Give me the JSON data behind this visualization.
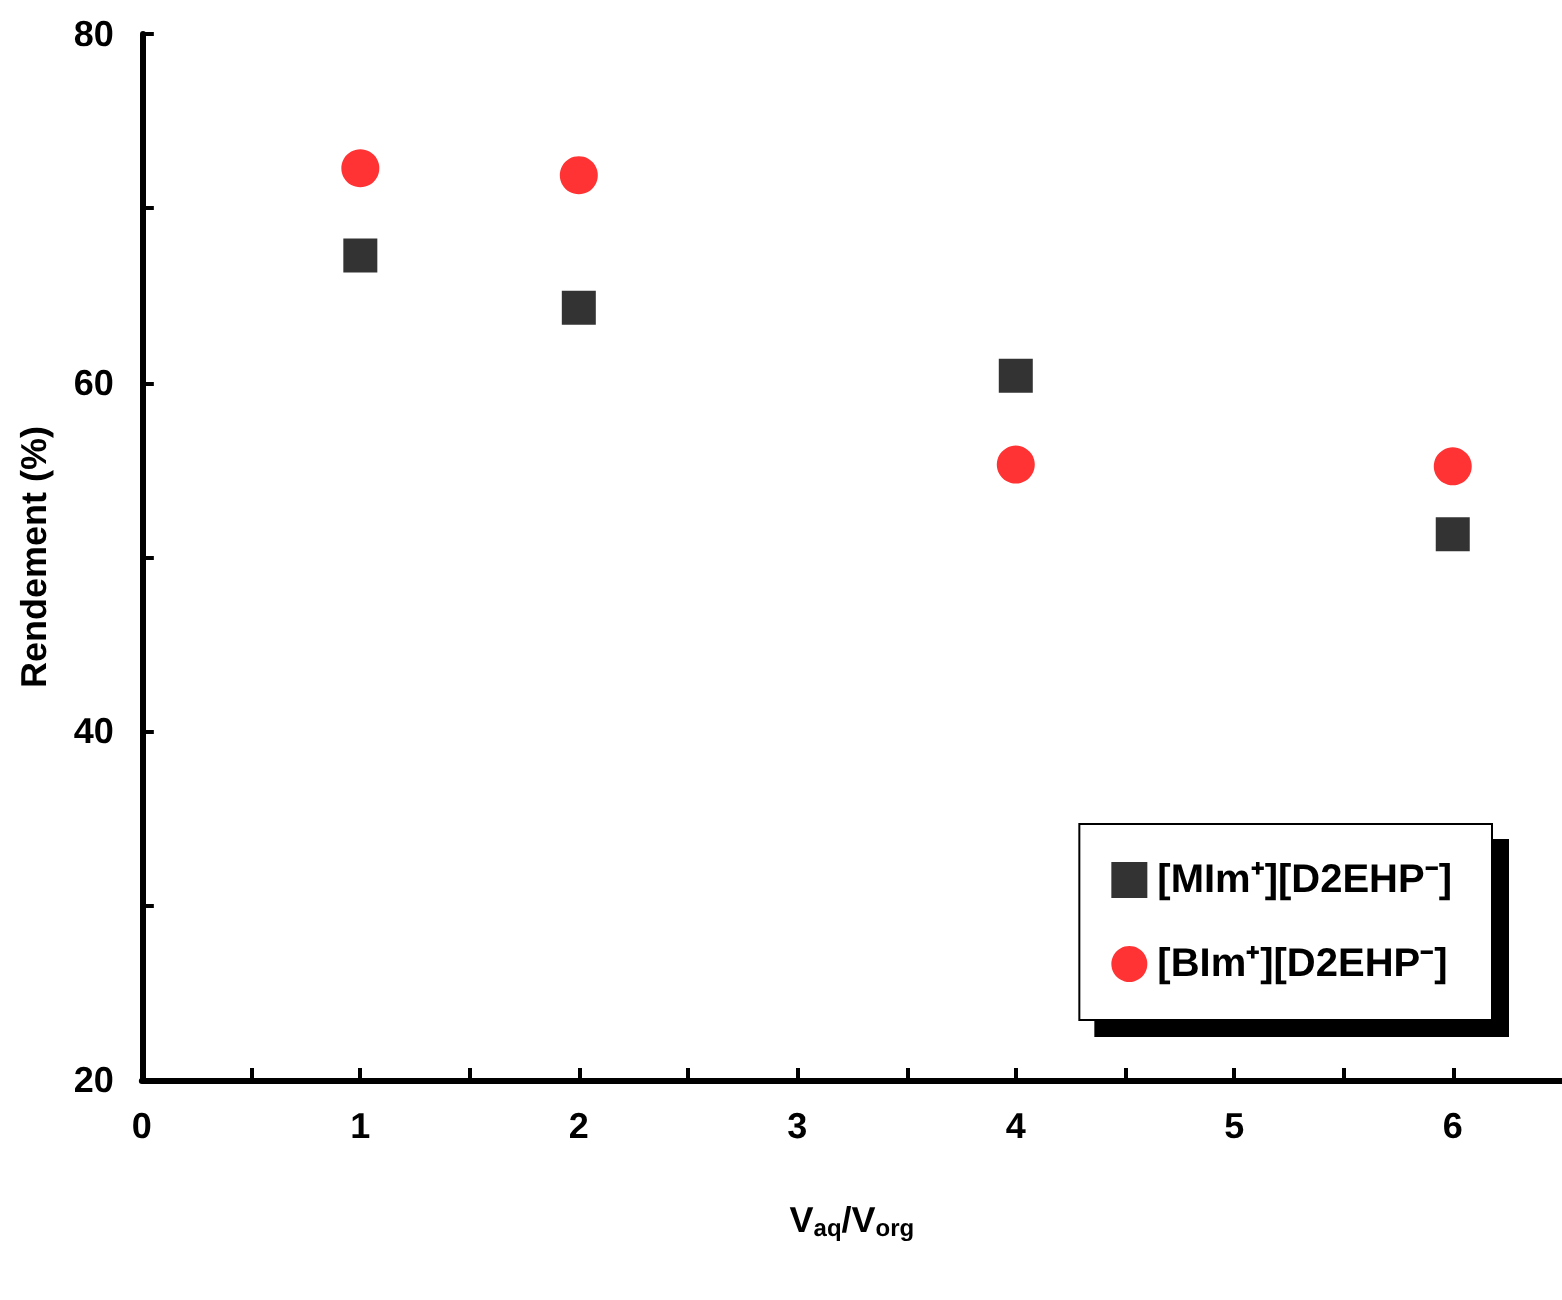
{
  "chart_data": {
    "type": "scatter",
    "xlabel": "V$_{aq}$/V$_{org}$",
    "ylabel": "Rendement (%)",
    "x": [
      1,
      2,
      4,
      6
    ],
    "series": [
      {
        "name": "[MIm⁺][D2EHP⁻]",
        "color": "#000000",
        "marker": "square",
        "values": [
          67.3,
          64.3,
          60.4,
          51.3
        ]
      },
      {
        "name": "[BIm⁺][D2EHP⁻]",
        "color": "#ff0000",
        "marker": "circle",
        "values": [
          72.3,
          71.9,
          55.3,
          55.2
        ]
      }
    ],
    "xlim": [
      0,
      6.5
    ],
    "xticks": [
      0,
      {
        "value": 0.5,
        "label": null
      },
      1,
      {
        "value": 1.5,
        "label": null
      },
      2,
      {
        "value": 2.5,
        "label": null
      },
      3,
      {
        "value": 3.5,
        "label": null
      },
      4,
      {
        "value": 4.5,
        "label": null
      },
      5,
      {
        "value": 5.5,
        "label": null
      },
      6
    ],
    "ylim": [
      20,
      80
    ],
    "yticks": [
      20,
      {
        "value": 30,
        "label": null
      },
      40,
      {
        "value": 50,
        "label": null
      },
      60,
      {
        "value": 70,
        "label": null
      },
      80
    ],
    "grid": false,
    "legend": "bottom right"
  }
}
